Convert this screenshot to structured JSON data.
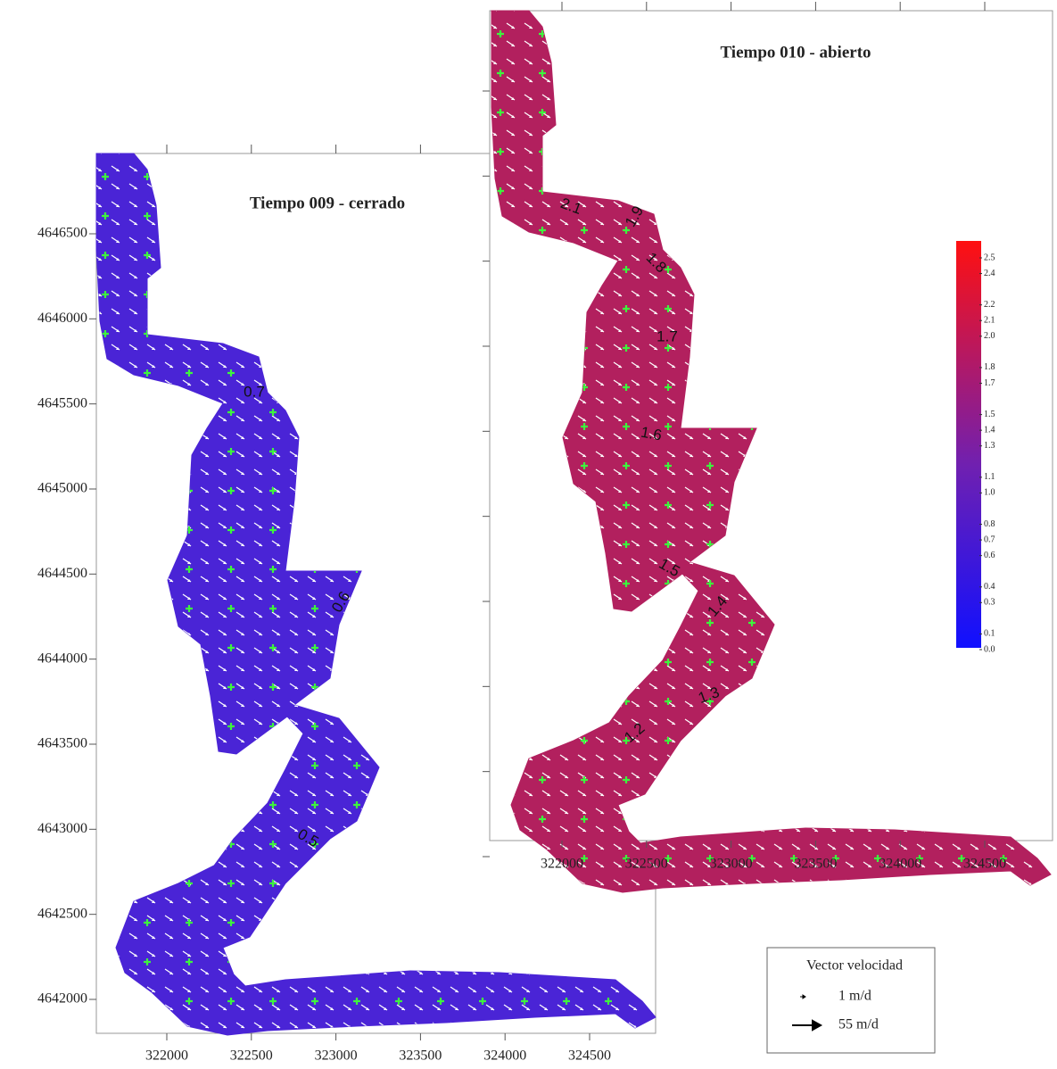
{
  "left_panel": {
    "title": "Tiempo 009 - cerrado",
    "x_ticks": [
      322000,
      322500,
      323000,
      323500,
      324000,
      324500
    ],
    "y_ticks": [
      4642000,
      4642500,
      4643000,
      4643500,
      4644000,
      4644500,
      4645000,
      4645500,
      4646000,
      4646500
    ],
    "contour_labels": [
      0.7,
      0.6,
      0.5
    ]
  },
  "right_panel": {
    "title": "Tiempo 010 - abierto",
    "x_ticks": [
      322000,
      322500,
      323000,
      323500,
      324000,
      324500
    ],
    "contour_labels": [
      2.1,
      1.9,
      1.8,
      1.7,
      1.6,
      1.5,
      1.4,
      1.3,
      1.2
    ]
  },
  "colorbar": {
    "ticks": [
      {
        "value": 0,
        "label": "0.0"
      },
      0.1,
      0.3,
      0.4,
      0.6,
      0.7,
      0.8,
      {
        "value": 1,
        "label": "1.0"
      },
      1.1,
      1.3,
      1.4,
      1.5,
      1.7,
      1.8,
      {
        "value": 2,
        "label": "2.0"
      },
      2.1,
      2.2,
      2.4,
      2.5
    ]
  },
  "legend": {
    "title": "Vector velocidad",
    "entries": [
      "1 m/d",
      "55 m/d"
    ]
  }
}
